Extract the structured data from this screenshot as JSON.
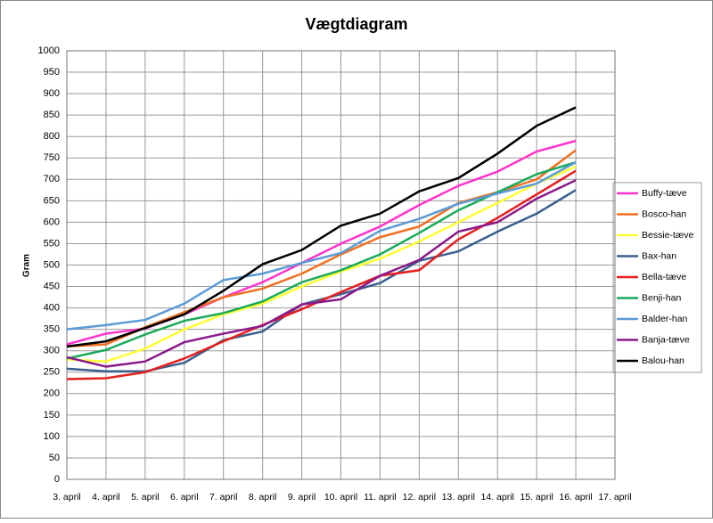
{
  "chart_data": {
    "type": "line",
    "title": "Vægtdiagram",
    "y_label": "Gram",
    "categories": [
      "3. april",
      "4. april",
      "5. april",
      "6. april",
      "7. april",
      "8. april",
      "9. april",
      "10. april",
      "11. april",
      "12. april",
      "13. april",
      "14. april",
      "15. april",
      "16. april",
      "17. april"
    ],
    "ylim": [
      0,
      1000
    ],
    "yticks": [
      0,
      50,
      100,
      150,
      200,
      250,
      300,
      350,
      400,
      450,
      500,
      550,
      600,
      650,
      700,
      750,
      800,
      850,
      900,
      950,
      1000
    ],
    "grid": true,
    "legend": "right",
    "series": [
      {
        "name": "Buffy-tæve",
        "color": "#ff33cc",
        "values": [
          315,
          340,
          352,
          385,
          425,
          460,
          505,
          550,
          590,
          640,
          685,
          718,
          765,
          790,
          null
        ]
      },
      {
        "name": "Bosco-han",
        "color": "#f07020",
        "values": [
          310,
          315,
          355,
          390,
          425,
          445,
          480,
          525,
          565,
          590,
          645,
          670,
          700,
          768,
          null
        ]
      },
      {
        "name": "Bessie-tæve",
        "color": "#ffff33",
        "values": [
          280,
          275,
          305,
          350,
          385,
          410,
          450,
          485,
          515,
          555,
          600,
          645,
          690,
          730,
          null
        ]
      },
      {
        "name": "Bax-han",
        "color": "#3a5f8f",
        "values": [
          258,
          252,
          252,
          272,
          325,
          345,
          408,
          432,
          458,
          510,
          532,
          578,
          620,
          675,
          null
        ]
      },
      {
        "name": "Bella-tæve",
        "color": "#e61e1e",
        "values": [
          234,
          236,
          250,
          282,
          322,
          360,
          397,
          437,
          475,
          488,
          560,
          610,
          665,
          720,
          null
        ]
      },
      {
        "name": "Benji-han",
        "color": "#1aaa5a",
        "values": [
          282,
          302,
          338,
          370,
          388,
          415,
          460,
          488,
          525,
          575,
          628,
          670,
          712,
          740,
          null
        ]
      },
      {
        "name": "Balder-han",
        "color": "#5b9bd5",
        "values": [
          350,
          360,
          372,
          410,
          465,
          480,
          505,
          528,
          580,
          608,
          643,
          667,
          690,
          740,
          null
        ]
      },
      {
        "name": "Banja-tæve",
        "color": "#8b1a8b",
        "values": [
          285,
          263,
          275,
          320,
          340,
          358,
          408,
          420,
          475,
          512,
          578,
          600,
          655,
          698,
          null
        ]
      },
      {
        "name": "Balou-han",
        "color": "#000000",
        "values": [
          310,
          322,
          353,
          385,
          440,
          502,
          535,
          592,
          620,
          672,
          703,
          760,
          825,
          868,
          null
        ]
      }
    ]
  }
}
